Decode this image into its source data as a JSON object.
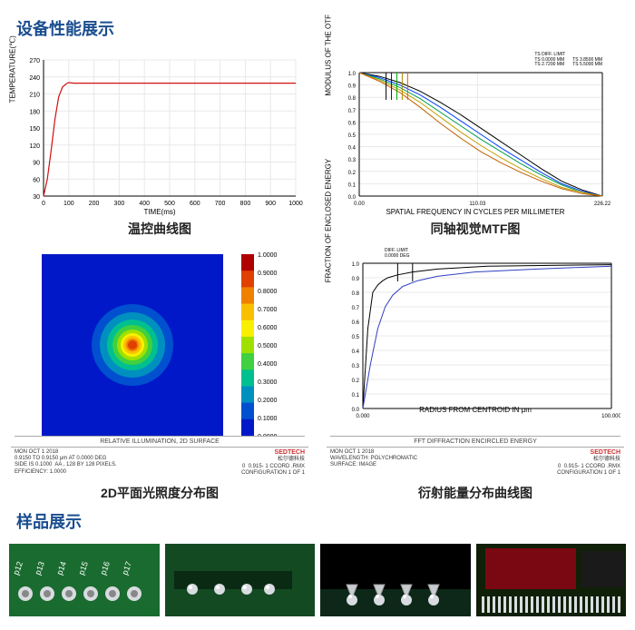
{
  "sections": {
    "performance_title": "设备性能展示",
    "sample_title": "样品展示"
  },
  "chart1": {
    "caption": "温控曲线图",
    "ylabel": "TEMPERATURE(℃)",
    "xlabel": "TIME(ms)",
    "x_ticks": [
      0,
      100,
      200,
      300,
      400,
      500,
      600,
      700,
      800,
      900,
      1000
    ],
    "y_ticks": [
      30,
      60,
      90,
      120,
      150,
      180,
      210,
      240,
      270
    ],
    "ylim": [
      30,
      270
    ],
    "xlim": [
      0,
      1000
    ],
    "grid_color": "#e8e8e8",
    "line_color": "#d01010",
    "line_width": 1.2,
    "data_x": [
      0,
      15,
      30,
      45,
      60,
      75,
      90,
      100,
      120,
      1000
    ],
    "data_y": [
      30,
      60,
      110,
      165,
      205,
      222,
      228,
      230,
      229,
      229
    ],
    "label_fontsize": 8
  },
  "chart2": {
    "caption": "同轴视觉MTF图",
    "ylabel": "MODULUS OF THE OTF",
    "xlabel": "SPATIAL FREQUENCY IN CYCLES PER MILLIMETER",
    "xlim": [
      0,
      226.22
    ],
    "ylim": [
      0,
      1
    ],
    "x_ticks_labels": [
      "0.00",
      "110.03",
      "226.22"
    ],
    "x_ticks_pos": [
      0,
      110.03,
      226.22
    ],
    "y_ticks": [
      0,
      0.1,
      0.2,
      0.3,
      0.4,
      0.5,
      0.6,
      0.7,
      0.8,
      0.9,
      1.0
    ],
    "grid_color": "#e8e8e8",
    "legend": [
      "TS DIFF. LIMIT",
      "TS 0.0000 MM",
      "TS 2.7200 MM",
      "TS 3.8500 MM",
      "TS 5.5000 MM"
    ],
    "series": [
      {
        "color": "#000000",
        "y": [
          1.0,
          0.97,
          0.92,
          0.85,
          0.76,
          0.66,
          0.55,
          0.44,
          0.33,
          0.22,
          0.12,
          0.05,
          0.0
        ]
      },
      {
        "color": "#0040ff",
        "y": [
          1.0,
          0.96,
          0.9,
          0.82,
          0.72,
          0.61,
          0.5,
          0.39,
          0.29,
          0.19,
          0.1,
          0.04,
          0.0
        ]
      },
      {
        "color": "#00a050",
        "y": [
          1.0,
          0.95,
          0.88,
          0.79,
          0.68,
          0.57,
          0.46,
          0.36,
          0.26,
          0.17,
          0.09,
          0.03,
          0.0
        ]
      },
      {
        "color": "#c0a000",
        "y": [
          1.0,
          0.94,
          0.86,
          0.76,
          0.64,
          0.52,
          0.41,
          0.31,
          0.22,
          0.14,
          0.07,
          0.03,
          0.0
        ]
      },
      {
        "color": "#c06000",
        "y": [
          1.0,
          0.93,
          0.84,
          0.72,
          0.59,
          0.47,
          0.36,
          0.27,
          0.19,
          0.12,
          0.06,
          0.02,
          0.0
        ]
      }
    ],
    "vline_colors": [
      "#000",
      "#00f",
      "#0a0",
      "#a80",
      "#c60"
    ],
    "vline_pos": [
      25,
      30,
      35,
      40,
      45
    ],
    "label_fontsize": 8
  },
  "chart3": {
    "caption": "2D平面光照度分布图",
    "background": "#0018c8",
    "meta_title": "RELATIVE ILLUMINATION, 2D SURFACE",
    "meta_left": "MON OCT 1 2018\n0.9150 TO 0.9150 μm AT 0.0000 DEG\nSIDE IS 0.1000  AA , 128 BY 128 PIXELS.\nEFFICIENCY: 1.0000",
    "meta_right_logo": "SEDTECH",
    "meta_right_sub": "松尔德科技",
    "meta_right_config": "0  0.915- 1 CCORD .RMX\nCONFIGURATION 1 OF 1",
    "colorbar": {
      "values": [
        "1.0000",
        "0.9000",
        "0.8000",
        "0.7000",
        "0.6000",
        "0.5000",
        "0.4000",
        "0.3000",
        "0.2000",
        "0.1000",
        "0.0000"
      ],
      "colors": [
        "#b00000",
        "#e04000",
        "#f08000",
        "#f8c000",
        "#f8f000",
        "#a0e000",
        "#40d040",
        "#00c090",
        "#0090c0",
        "#0050d0",
        "#0018c8"
      ]
    }
  },
  "chart4": {
    "caption": "衍射能量分布曲线图",
    "ylabel": "FRACTION OF ENCLOSED ENERGY",
    "xlabel": "RADIUS FROM CENTROID IN μm",
    "xlim": [
      0,
      100
    ],
    "ylim": [
      0,
      1
    ],
    "x_ticks_labels": [
      "0.000",
      "100.000"
    ],
    "x_ticks_pos": [
      0,
      100
    ],
    "y_ticks": [
      0,
      0.1,
      0.2,
      0.3,
      0.4,
      0.5,
      0.6,
      0.7,
      0.8,
      0.9,
      1.0
    ],
    "grid_color": "#e8e8e8",
    "legend": [
      "DIFF. LIMIT",
      "0.0000 DEG"
    ],
    "series": [
      {
        "color": "#000000",
        "x": [
          0,
          2,
          4,
          6,
          8,
          10,
          14,
          20,
          30,
          50,
          100
        ],
        "y": [
          0,
          0.55,
          0.8,
          0.85,
          0.88,
          0.9,
          0.92,
          0.94,
          0.96,
          0.98,
          0.99
        ]
      },
      {
        "color": "#3040c0",
        "x": [
          0,
          3,
          6,
          9,
          12,
          16,
          22,
          30,
          45,
          70,
          100
        ],
        "y": [
          0,
          0.3,
          0.55,
          0.7,
          0.78,
          0.84,
          0.88,
          0.91,
          0.94,
          0.96,
          0.98
        ]
      }
    ],
    "vline_pos": [
      14,
      20
    ],
    "meta_title": "FFT DIFFRACTION ENCIRCLED ENERGY",
    "meta_left": "MON OCT 1 2018\nWAVELENGTH: POLYCHROMATIC\nSURFACE: IMAGE",
    "meta_right_logo": "SEDTECH",
    "meta_right_sub": "松尔德科技",
    "meta_right_config": "0  0.915- 1 CCORD .RMX\nCONFIGURATION 1 OF 1"
  },
  "samples": {
    "pcb_green": "#1a6b2f",
    "pcb_dark": "#0d2818",
    "solder": "#d8dce0",
    "chip_red": "#7a0812",
    "pin_labels": [
      "p12",
      "p13",
      "p14",
      "p15",
      "p16",
      "p17"
    ]
  }
}
